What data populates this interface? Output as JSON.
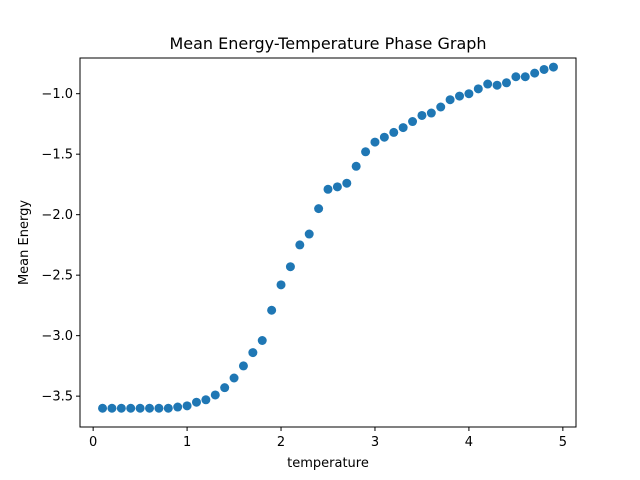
{
  "chart_data": {
    "type": "scatter",
    "title": "Mean Energy-Temperature Phase Graph",
    "xlabel": "temperature",
    "ylabel": "Mean Energy",
    "xlim": [
      -0.14,
      5.14
    ],
    "ylim": [
      -3.755,
      -0.705
    ],
    "xticks": [
      0,
      1,
      2,
      3,
      4,
      5
    ],
    "yticks": [
      -3.5,
      -3.0,
      -2.5,
      -2.0,
      -1.5,
      -1.0
    ],
    "xtick_labels": [
      "0",
      "1",
      "2",
      "3",
      "4",
      "5"
    ],
    "ytick_labels": [
      "−3.5",
      "−3.0",
      "−2.5",
      "−2.0",
      "−1.5",
      "−1.0"
    ],
    "grid": false,
    "marker_color": "#1f77b4",
    "x": [
      0.1,
      0.2,
      0.3,
      0.4,
      0.5,
      0.6,
      0.7,
      0.8,
      0.9,
      1.0,
      1.1,
      1.2,
      1.3,
      1.4,
      1.5,
      1.6,
      1.7,
      1.8,
      1.9,
      2.0,
      2.1,
      2.2,
      2.3,
      2.4,
      2.5,
      2.6,
      2.7,
      2.8,
      2.9,
      3.0,
      3.1,
      3.2,
      3.3,
      3.4,
      3.5,
      3.6,
      3.7,
      3.8,
      3.9,
      4.0,
      4.1,
      4.2,
      4.3,
      4.4,
      4.5,
      4.6,
      4.7,
      4.8,
      4.9
    ],
    "y": [
      -3.6,
      -3.6,
      -3.6,
      -3.6,
      -3.6,
      -3.6,
      -3.6,
      -3.6,
      -3.59,
      -3.58,
      -3.55,
      -3.53,
      -3.49,
      -3.43,
      -3.35,
      -3.25,
      -3.14,
      -3.04,
      -2.79,
      -2.58,
      -2.43,
      -2.25,
      -2.16,
      -1.95,
      -1.79,
      -1.77,
      -1.74,
      -1.6,
      -1.48,
      -1.4,
      -1.36,
      -1.32,
      -1.28,
      -1.23,
      -1.18,
      -1.16,
      -1.11,
      -1.05,
      -1.02,
      -1.0,
      -0.96,
      -0.92,
      -0.93,
      -0.91,
      -0.86,
      -0.86,
      -0.83,
      -0.8,
      -0.78
    ]
  }
}
